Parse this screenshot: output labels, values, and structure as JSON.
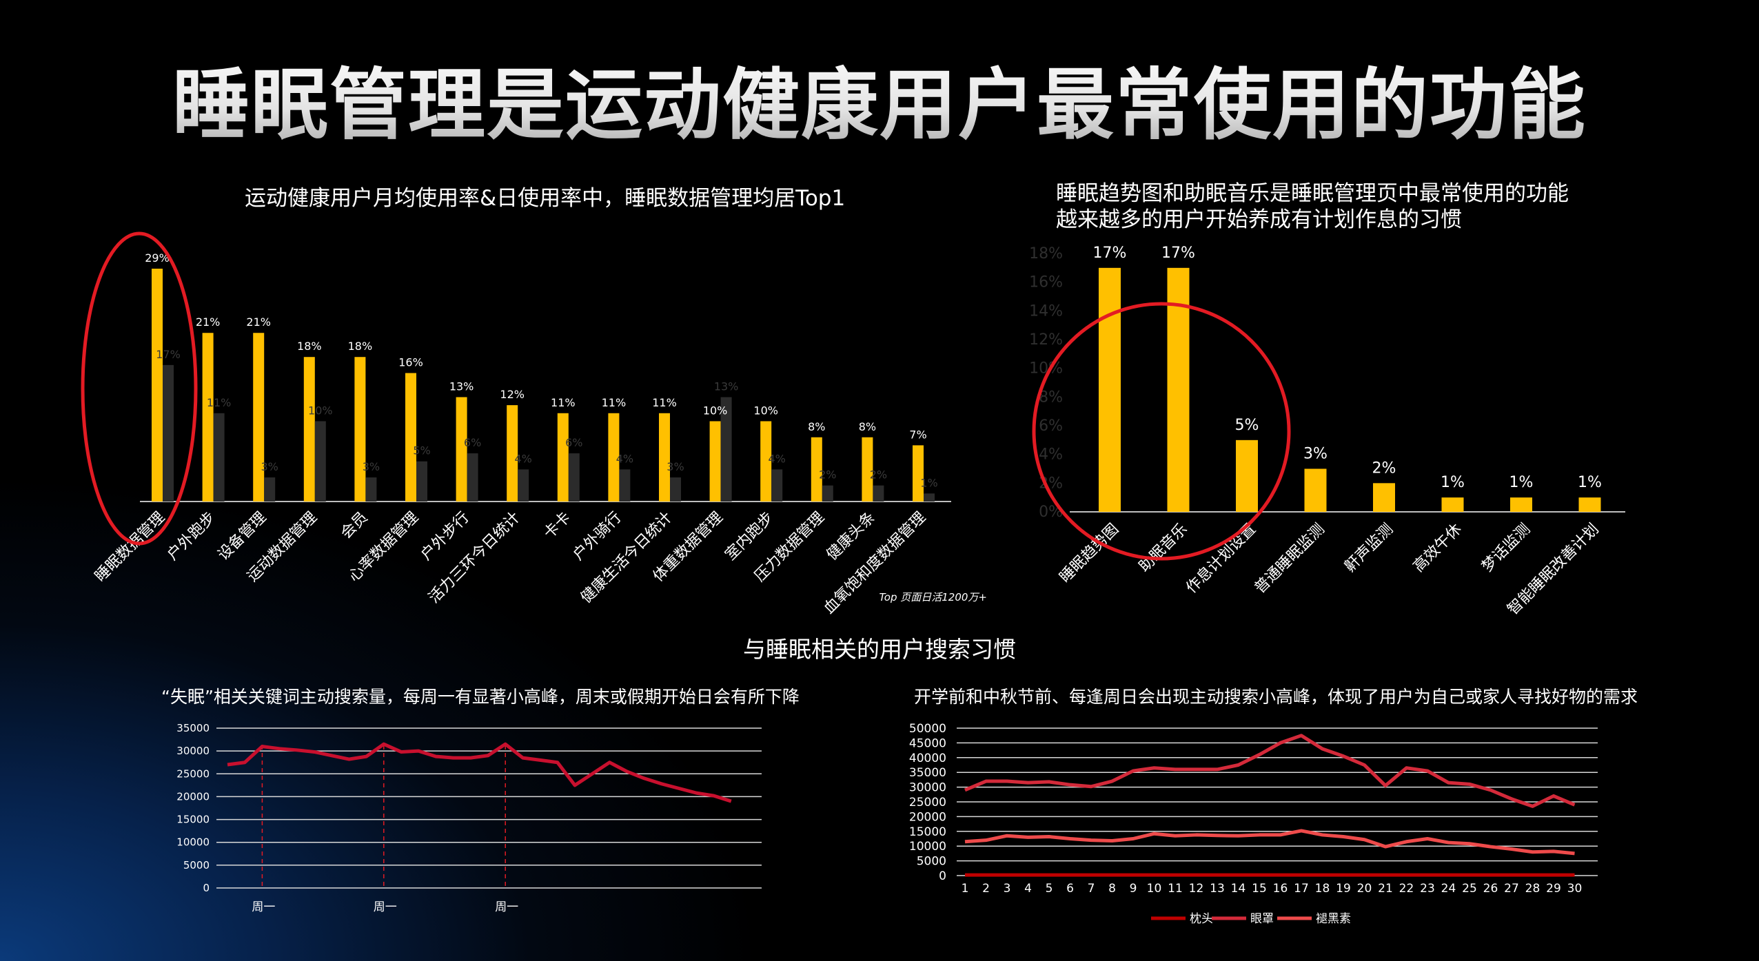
{
  "title": "睡眠管理是运动健康用户最常使用的功能",
  "section_title": "与睡眠相关的用户搜索习惯",
  "colors": {
    "bar_yellow": "#ffc000",
    "bar_dark": "#2b2b2b",
    "annotation_red": "#e31b23",
    "line_red": "#c8102e",
    "axis": "#bfbfbf"
  },
  "chart_data": [
    {
      "type": "bar",
      "title": "运动健康用户月均使用率&日使用率中，睡眠数据管理均居Top1",
      "note": "Top 页面日活1200万+",
      "categories": [
        "睡眠数据管理",
        "户外跑步",
        "设备管理",
        "运动数据管理",
        "会员",
        "心率数据管理",
        "户外步行",
        "活力三环今日统计",
        "卡卡",
        "户外骑行",
        "健康生活今日统计",
        "体重数据管理",
        "室内跑步",
        "压力数据管理",
        "健康头条",
        "血氧饱和度数据管理"
      ],
      "series": [
        {
          "values": [
            29,
            21,
            21,
            18,
            18,
            16,
            13,
            12,
            11,
            11,
            11,
            10,
            10,
            8,
            8,
            7
          ],
          "labels": [
            "29%",
            "21%",
            "21%",
            "18%",
            "18%",
            "16%",
            "13%",
            "12%",
            "11%",
            "11%",
            "11%",
            "10%",
            "10%",
            "8%",
            "8%",
            "7%"
          ]
        },
        {
          "values": [
            17,
            11,
            3,
            10,
            3,
            5,
            6,
            4,
            6,
            4,
            3,
            13,
            4,
            2,
            2,
            1
          ],
          "labels": [
            "17%",
            "11%",
            "3%",
            "10%",
            "3%",
            "5%",
            "6%",
            "4%",
            "6%",
            "4%",
            "3%",
            "13%",
            "4%",
            "2%",
            "2%",
            "1%"
          ]
        }
      ],
      "highlight": "睡眠数据管理"
    },
    {
      "type": "bar",
      "title": "睡眠趋势图和助眠音乐是睡眠管理页中最常使用的功能",
      "subtitle": "越来越多的用户开始养成有计划作息的习惯",
      "categories": [
        "睡眠趋势图",
        "助眠音乐",
        "作息计划设置",
        "普通睡眠监测",
        "鼾声监测",
        "高效午休",
        "梦话监测",
        "智能睡眠改善计划"
      ],
      "values": [
        17,
        17,
        5,
        3,
        2,
        1,
        1,
        1
      ],
      "labels": [
        "17%",
        "17%",
        "5%",
        "3%",
        "2%",
        "1%",
        "1%",
        "1%"
      ],
      "yticks": [
        "18%",
        "16%",
        "14%",
        "12%",
        "10%",
        "8%",
        "6%",
        "4%",
        "2%",
        "0%"
      ],
      "ylim": [
        0,
        18
      ]
    },
    {
      "type": "line",
      "title": "“失眠”相关关键词主动搜索量，每周一有显著小高峰，周末或假期开始日会有所下降",
      "values": [
        27000,
        27500,
        31000,
        30500,
        30200,
        29800,
        29000,
        28200,
        28800,
        31500,
        29800,
        30000,
        28800,
        28500,
        28500,
        29000,
        31500,
        28500,
        28000,
        27500,
        22500,
        25000,
        27500,
        25500,
        24000,
        22800,
        21800,
        20800,
        20200,
        19000
      ],
      "ylim": [
        0,
        35000
      ],
      "yticks": [
        "35000",
        "30000",
        "25000",
        "20000",
        "15000",
        "10000",
        "5000",
        "0"
      ],
      "markers": [
        {
          "index": 2,
          "label": "周一"
        },
        {
          "index": 9,
          "label": "周一"
        },
        {
          "index": 16,
          "label": "周一"
        }
      ]
    },
    {
      "type": "line",
      "title": "开学前和中秋节前、每逢周日会出现主动搜索小高峰，体现了用户为自己或家人寻找好物的需求",
      "x": [
        "1",
        "2",
        "3",
        "4",
        "5",
        "6",
        "7",
        "8",
        "9",
        "10",
        "11",
        "12",
        "13",
        "14",
        "15",
        "16",
        "17",
        "18",
        "19",
        "20",
        "21",
        "22",
        "23",
        "24",
        "25",
        "26",
        "27",
        "28",
        "29",
        "30"
      ],
      "ylim": [
        0,
        50000
      ],
      "yticks": [
        "50000",
        "45000",
        "40000",
        "35000",
        "30000",
        "25000",
        "20000",
        "15000",
        "10000",
        "5000",
        "0"
      ],
      "legend_position": "bottom",
      "series": [
        {
          "name": "枕头",
          "color": "#c00000",
          "values": [
            200,
            200,
            200,
            200,
            200,
            200,
            200,
            200,
            200,
            200,
            200,
            200,
            200,
            200,
            200,
            200,
            200,
            200,
            200,
            200,
            200,
            200,
            200,
            200,
            200,
            200,
            200,
            200,
            200,
            200
          ]
        },
        {
          "name": "眼罩",
          "color": "#d42a3a",
          "values": [
            29000,
            32000,
            32000,
            31500,
            31800,
            30800,
            30200,
            32000,
            35500,
            36500,
            36000,
            36000,
            36000,
            37500,
            41000,
            45000,
            47500,
            43000,
            40500,
            37500,
            30500,
            36500,
            35500,
            31500,
            31000,
            29000,
            26000,
            23500,
            27000,
            24000
          ]
        },
        {
          "name": "褪黑素",
          "color": "#ee4b4b",
          "values": [
            11500,
            12000,
            13500,
            13000,
            13200,
            12500,
            12000,
            11800,
            12500,
            14200,
            13500,
            13800,
            13600,
            13500,
            13800,
            13800,
            15200,
            13800,
            13200,
            12200,
            9800,
            11500,
            12500,
            11200,
            10800,
            9800,
            9000,
            8000,
            8200,
            7500
          ]
        }
      ]
    }
  ]
}
